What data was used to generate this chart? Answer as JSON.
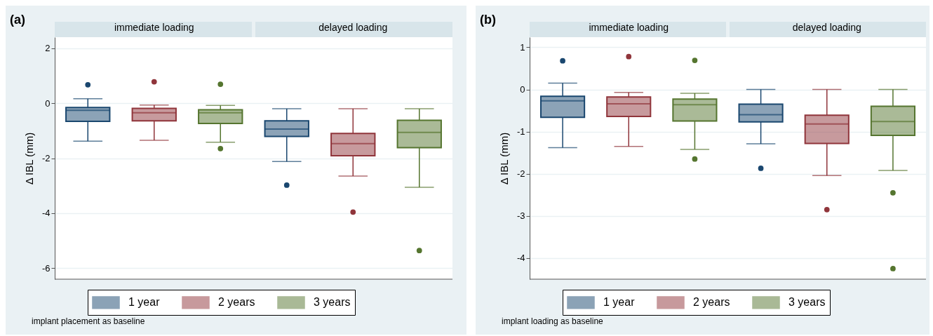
{
  "chart_data": [
    {
      "type": "box",
      "ylabel": "Δ IBL (mm)",
      "categories": [
        "immediate loading",
        "delayed loading"
      ],
      "ylim": [
        -6.4,
        2.4
      ],
      "yticks": [
        -6,
        -4,
        -2,
        0,
        2
      ],
      "grid": "y",
      "legend": "bottom",
      "annotations": [
        "(a)",
        "implant placement as baseline"
      ],
      "series": [
        {
          "name": "1 year",
          "color": "#1a476f",
          "boxes": [
            {
              "low": -1.38,
              "q1": -0.66,
              "median": -0.26,
              "q3": -0.16,
              "high": 0.16,
              "outliers": [
                0.67
              ]
            },
            {
              "low": -2.12,
              "q1": -1.21,
              "median": -0.94,
              "q3": -0.64,
              "high": -0.2,
              "outliers": [
                -2.98
              ]
            }
          ]
        },
        {
          "name": "2 years",
          "color": "#90353b",
          "boxes": [
            {
              "low": -1.35,
              "q1": -0.64,
              "median": -0.35,
              "q3": -0.19,
              "high": -0.07,
              "outliers": [
                0.78
              ]
            },
            {
              "low": -2.65,
              "q1": -1.91,
              "median": -1.47,
              "q3": -1.1,
              "high": -0.2,
              "outliers": [
                -3.96
              ]
            }
          ]
        },
        {
          "name": "3 years",
          "color": "#55752f",
          "boxes": [
            {
              "low": -1.42,
              "q1": -0.74,
              "median": -0.35,
              "q3": -0.24,
              "high": -0.08,
              "outliers": [
                0.69,
                -1.65
              ]
            },
            {
              "low": -3.06,
              "q1": -1.62,
              "median": -1.06,
              "q3": -0.62,
              "high": -0.2,
              "outliers": [
                -5.36
              ]
            }
          ]
        }
      ]
    },
    {
      "type": "box",
      "ylabel": "Δ IBL (mm)",
      "categories": [
        "immediate loading",
        "delayed loading"
      ],
      "ylim": [
        -4.5,
        1.24
      ],
      "yticks": [
        -4,
        -3,
        -2,
        -1,
        0,
        1
      ],
      "grid": "y",
      "legend": "bottom",
      "annotations": [
        "(b)",
        "implant loading as baseline"
      ],
      "series": [
        {
          "name": "1 year",
          "color": "#1a476f",
          "boxes": [
            {
              "low": -1.38,
              "q1": -0.66,
              "median": -0.27,
              "q3": -0.16,
              "high": 0.15,
              "outliers": [
                0.68
              ]
            },
            {
              "low": -1.29,
              "q1": -0.77,
              "median": -0.6,
              "q3": -0.35,
              "high": 0,
              "outliers": [
                -1.87
              ]
            }
          ]
        },
        {
          "name": "2 years",
          "color": "#90353b",
          "boxes": [
            {
              "low": -1.35,
              "q1": -0.64,
              "median": -0.34,
              "q3": -0.18,
              "high": -0.07,
              "outliers": [
                0.78
              ]
            },
            {
              "low": -2.04,
              "q1": -1.28,
              "median": -0.82,
              "q3": -0.61,
              "high": 0,
              "outliers": [
                -2.85
              ]
            }
          ]
        },
        {
          "name": "3 years",
          "color": "#55752f",
          "boxes": [
            {
              "low": -1.42,
              "q1": -0.75,
              "median": -0.36,
              "q3": -0.23,
              "high": -0.09,
              "outliers": [
                0.69,
                -1.65
              ]
            },
            {
              "low": -1.92,
              "q1": -1.09,
              "median": -0.76,
              "q3": -0.4,
              "high": 0,
              "outliers": [
                -2.45,
                -4.25
              ]
            }
          ]
        }
      ]
    }
  ]
}
